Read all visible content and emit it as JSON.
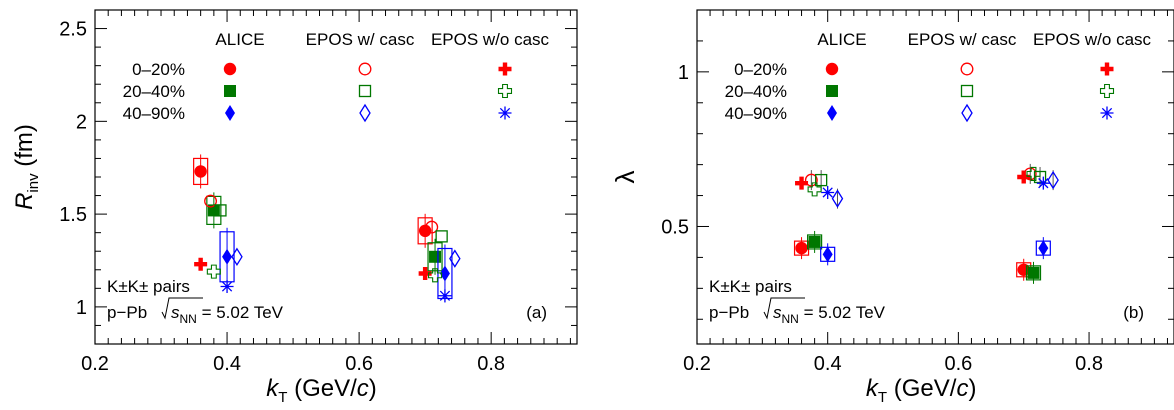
{
  "chart_data": [
    {
      "type": "scatter",
      "panel_label": "(a)",
      "ylabel_main": "R",
      "ylabel_sub": "inv",
      "ylabel_unit": " (fm)",
      "xlabel_main": "k",
      "xlabel_sub": "T",
      "xlabel_unit_pre": " (GeV/",
      "xlabel_unit_c": "c",
      "xlabel_unit_post": ")",
      "xlim": [
        0.2,
        0.93
      ],
      "ylim": [
        0.8,
        2.6
      ],
      "xticks": [
        "0.2",
        "0.4",
        "0.6",
        "0.8"
      ],
      "yticks": [
        "1",
        "1.5",
        "2",
        "2.5"
      ],
      "annotation_pairs": "K±K± pairs",
      "annotation_system": "p−Pb",
      "annotation_energy_sym": "s",
      "annotation_energy_sub": "NN",
      "annotation_energy_val": " = 5.02 TeV",
      "series": [
        {
          "group": "ALICE",
          "centrality": "0–20%",
          "x": [
            0.36,
            0.7
          ],
          "y": [
            1.73,
            1.41
          ]
        },
        {
          "group": "ALICE",
          "centrality": "20–40%",
          "x": [
            0.38,
            0.715
          ],
          "y": [
            1.52,
            1.27
          ]
        },
        {
          "group": "ALICE",
          "centrality": "40–90%",
          "x": [
            0.4,
            0.73
          ],
          "y": [
            1.27,
            1.18
          ]
        },
        {
          "group": "EPOS w/ casc",
          "centrality": "0–20%",
          "x": [
            0.375,
            0.71
          ],
          "y": [
            1.57,
            1.43
          ]
        },
        {
          "group": "EPOS w/ casc",
          "centrality": "20–40%",
          "x": [
            0.39,
            0.725
          ],
          "y": [
            1.52,
            1.38
          ]
        },
        {
          "group": "EPOS w/ casc",
          "centrality": "40–90%",
          "x": [
            0.415,
            0.745
          ],
          "y": [
            1.27,
            1.26
          ]
        },
        {
          "group": "EPOS w/o casc",
          "centrality": "0–20%",
          "x": [
            0.36,
            0.7
          ],
          "y": [
            1.23,
            1.18
          ]
        },
        {
          "group": "EPOS w/o casc",
          "centrality": "20–40%",
          "x": [
            0.38,
            0.715
          ],
          "y": [
            1.19,
            1.17
          ]
        },
        {
          "group": "EPOS w/o casc",
          "centrality": "40–90%",
          "x": [
            0.4,
            0.73
          ],
          "y": [
            1.11,
            1.06
          ]
        }
      ]
    },
    {
      "type": "scatter",
      "panel_label": "(b)",
      "ylabel_main": "λ",
      "xlabel_main": "k",
      "xlabel_sub": "T",
      "xlabel_unit_pre": " (GeV/",
      "xlabel_unit_c": "c",
      "xlabel_unit_post": ")",
      "xlim": [
        0.2,
        0.93
      ],
      "ylim": [
        0.12,
        1.2
      ],
      "xticks": [
        "0.2",
        "0.4",
        "0.6",
        "0.8"
      ],
      "yticks": [
        "0.5",
        "1"
      ],
      "annotation_pairs": "K±K± pairs",
      "annotation_system": "p−Pb",
      "annotation_energy_sym": "s",
      "annotation_energy_sub": "NN",
      "annotation_energy_val": " = 5.02 TeV",
      "series": [
        {
          "group": "ALICE",
          "centrality": "0–20%",
          "x": [
            0.36,
            0.7
          ],
          "y": [
            0.43,
            0.36
          ]
        },
        {
          "group": "ALICE",
          "centrality": "20–40%",
          "x": [
            0.38,
            0.715
          ],
          "y": [
            0.45,
            0.35
          ]
        },
        {
          "group": "ALICE",
          "centrality": "40–90%",
          "x": [
            0.4,
            0.73
          ],
          "y": [
            0.41,
            0.43
          ]
        },
        {
          "group": "EPOS w/ casc",
          "centrality": "0–20%",
          "x": [
            0.375,
            0.71
          ],
          "y": [
            0.65,
            0.67
          ]
        },
        {
          "group": "EPOS w/ casc",
          "centrality": "20–40%",
          "x": [
            0.39,
            0.725
          ],
          "y": [
            0.65,
            0.66
          ]
        },
        {
          "group": "EPOS w/ casc",
          "centrality": "40–90%",
          "x": [
            0.415,
            0.745
          ],
          "y": [
            0.59,
            0.65
          ]
        },
        {
          "group": "EPOS w/o casc",
          "centrality": "0–20%",
          "x": [
            0.36,
            0.7
          ],
          "y": [
            0.64,
            0.66
          ]
        },
        {
          "group": "EPOS w/o casc",
          "centrality": "20–40%",
          "x": [
            0.38,
            0.715
          ],
          "y": [
            0.62,
            0.67
          ]
        },
        {
          "group": "EPOS w/o casc",
          "centrality": "40–90%",
          "x": [
            0.4,
            0.73
          ],
          "y": [
            0.61,
            0.64
          ]
        }
      ]
    }
  ],
  "legend": {
    "columns": [
      "ALICE",
      "EPOS w/ casc",
      "EPOS w/o casc"
    ],
    "rows": [
      "0–20%",
      "20–40%",
      "40–90%"
    ]
  },
  "colors": {
    "0–20%": "#ff0000",
    "20–40%": "#007700",
    "40–90%": "#0000ff"
  }
}
